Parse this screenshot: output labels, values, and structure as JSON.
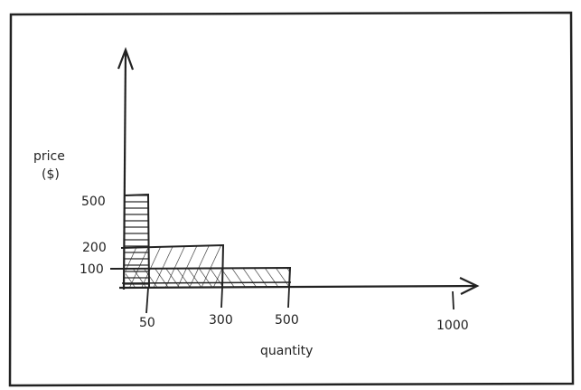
{
  "diagram": {
    "y_axis_label_line1": "price",
    "y_axis_label_line2": "($)",
    "x_axis_label": "quantity",
    "y_ticks": [
      {
        "value": 500,
        "label": "500"
      },
      {
        "value": 200,
        "label": "200"
      },
      {
        "value": 100,
        "label": "100"
      }
    ],
    "x_ticks": [
      {
        "value": 50,
        "label": "50"
      },
      {
        "value": 300,
        "label": "300"
      },
      {
        "value": 500,
        "label": "500"
      },
      {
        "value": 1000,
        "label": "1000"
      }
    ],
    "blocks": [
      {
        "quantity": 50,
        "price": 500
      },
      {
        "quantity": 300,
        "price": 200
      },
      {
        "quantity": 500,
        "price": 100
      }
    ],
    "stroke_color": "#222222",
    "background_color": "#ffffff"
  }
}
